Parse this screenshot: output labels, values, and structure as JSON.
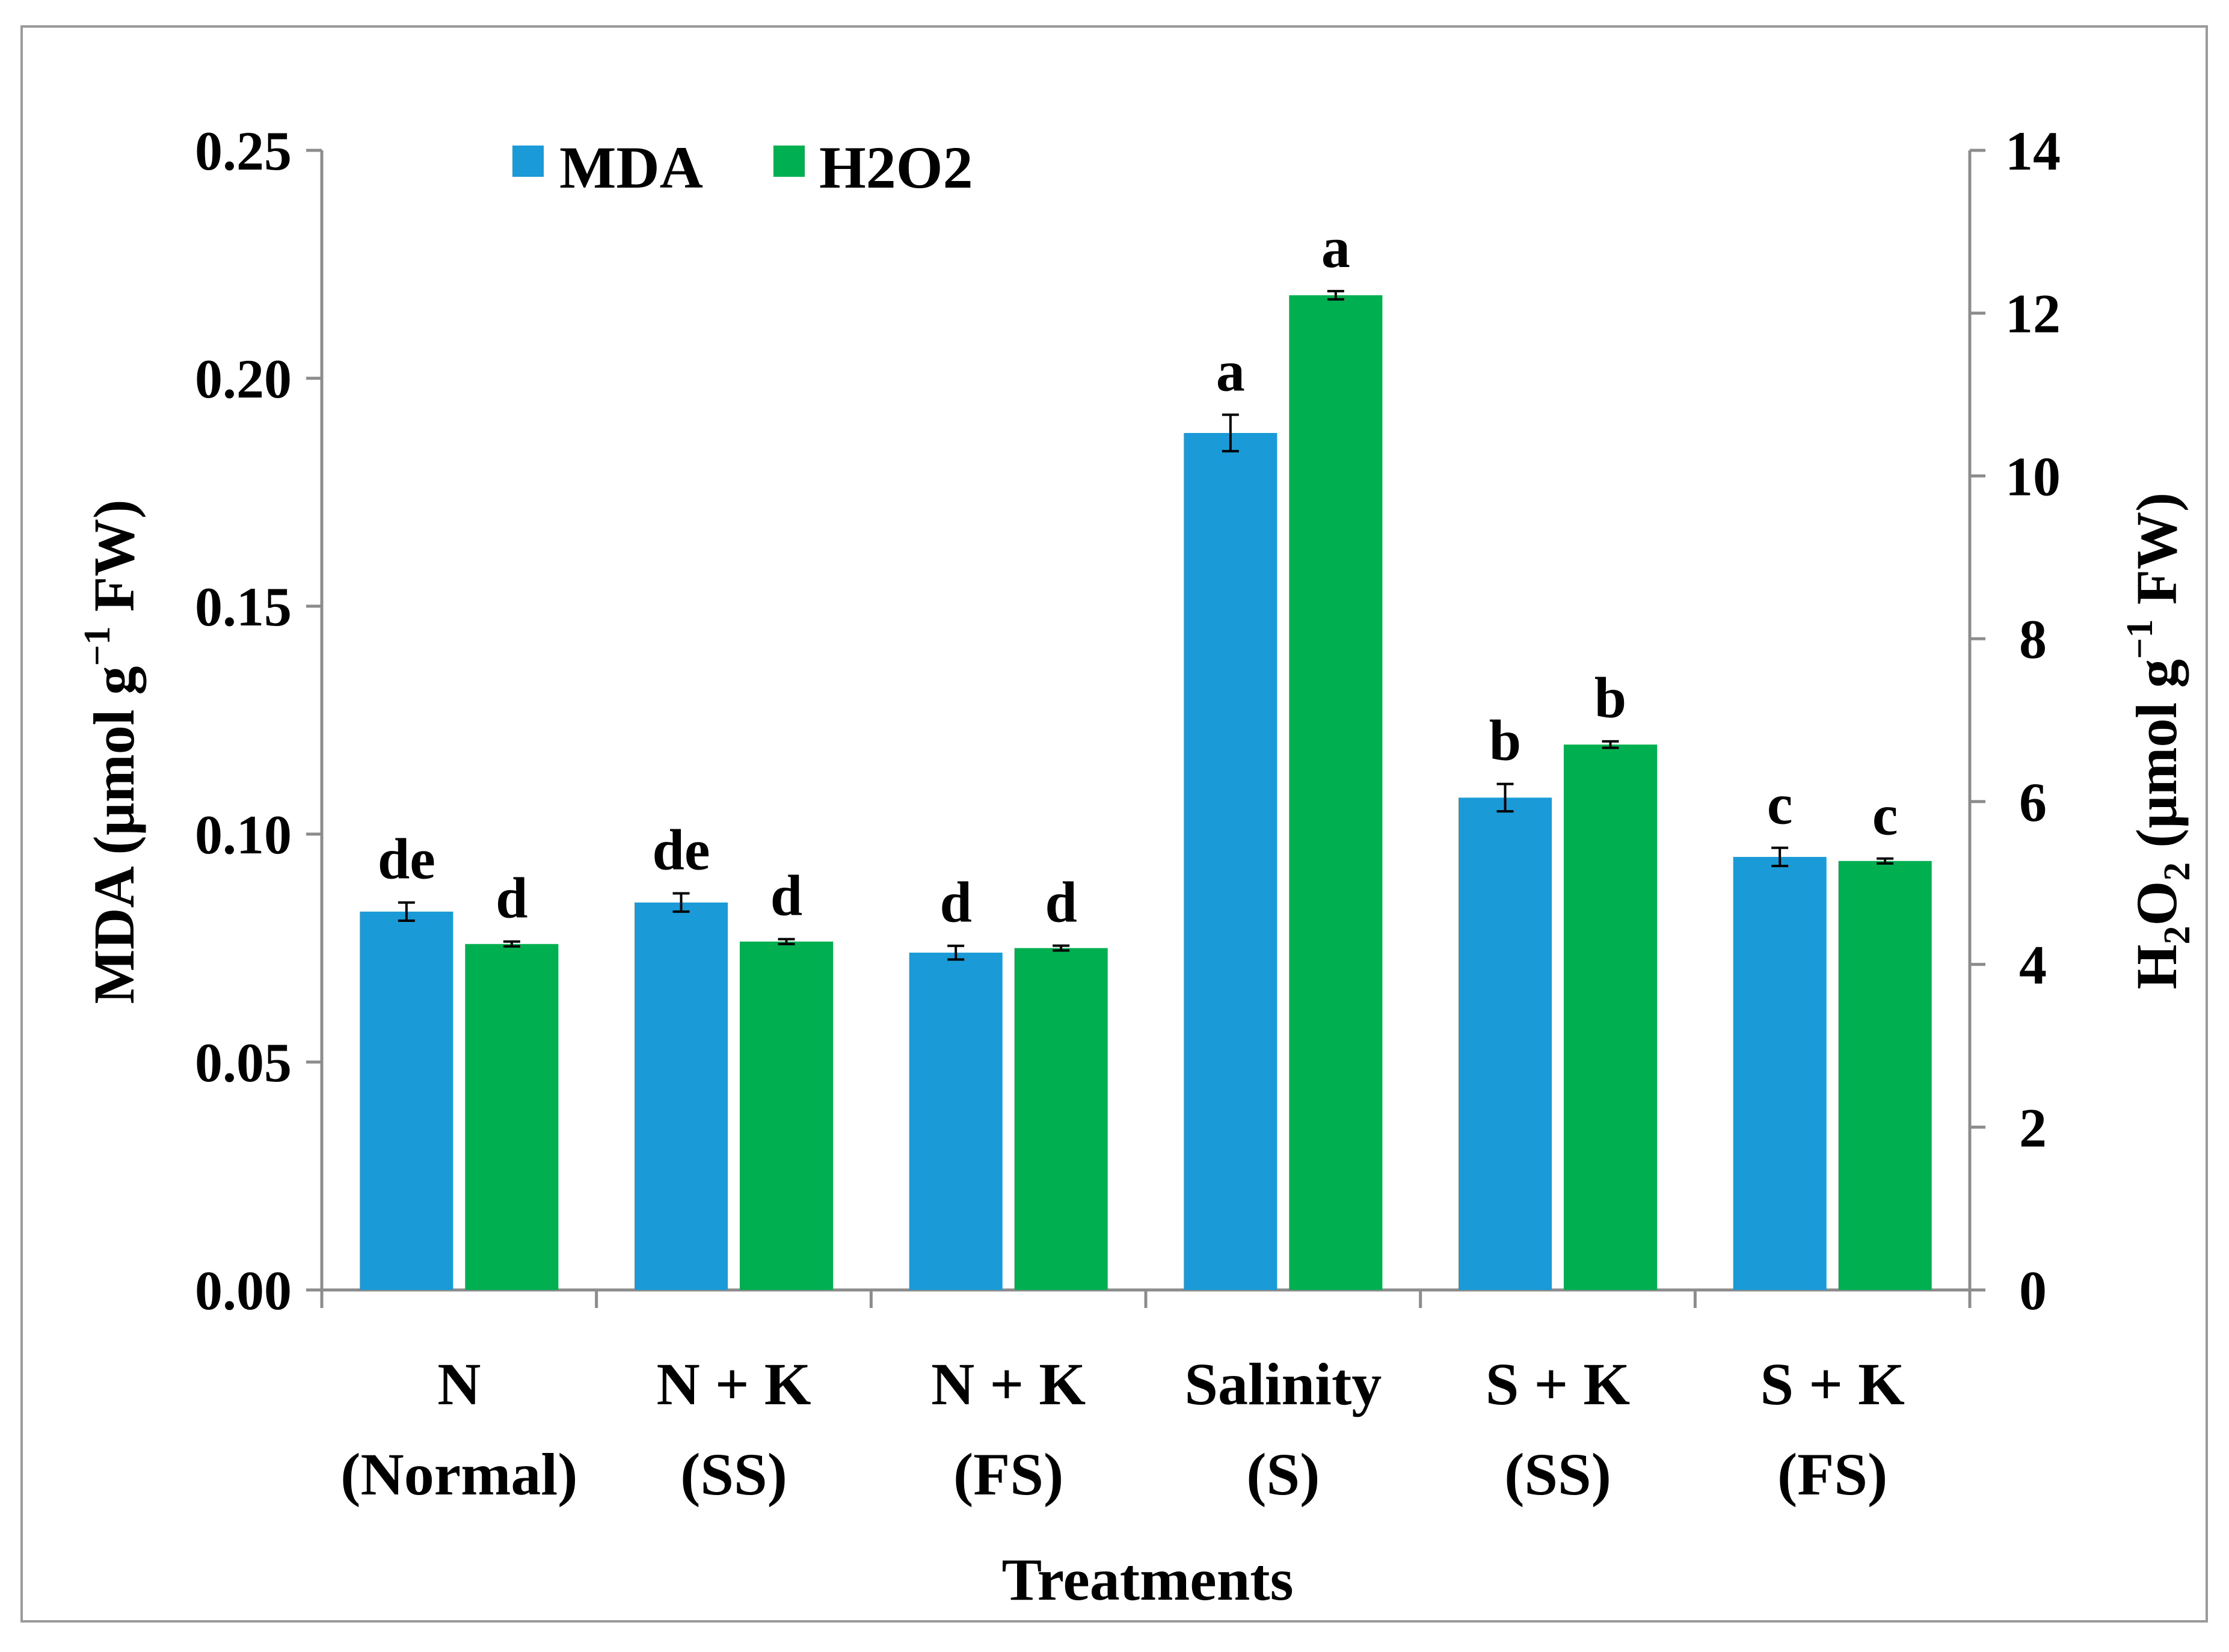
{
  "chart_data": {
    "type": "bar",
    "categories": [
      [
        "N",
        "(Normal)"
      ],
      [
        "N + K",
        "(SS)"
      ],
      [
        "N + K",
        "(FS)"
      ],
      [
        "Salinity",
        "(S)"
      ],
      [
        "S + K",
        "(SS)"
      ],
      [
        "S + K",
        "(FS)"
      ]
    ],
    "series": [
      {
        "name": "MDA",
        "axis": "left",
        "color": "#1a9ad7",
        "values": [
          0.083,
          0.085,
          0.074,
          0.188,
          0.108,
          0.095
        ],
        "errors": [
          0.002,
          0.002,
          0.0015,
          0.004,
          0.003,
          0.002
        ],
        "letters": [
          "de",
          "de",
          "d",
          "a",
          "b",
          "c"
        ]
      },
      {
        "name": "H2O2",
        "axis": "right",
        "color": "#00b050",
        "values": [
          4.25,
          4.28,
          4.2,
          12.22,
          6.7,
          5.27
        ],
        "errors": [
          0.03,
          0.03,
          0.03,
          0.05,
          0.04,
          0.03
        ],
        "letters": [
          "d",
          "d",
          "d",
          "a",
          "b",
          "c"
        ]
      }
    ],
    "left_axis": {
      "title_main": "MDA (µmol g",
      "title_sup": "−1",
      "title_end": " FW)",
      "ylim": [
        0,
        0.25
      ],
      "ticks": [
        "0.00",
        "0.05",
        "0.10",
        "0.15",
        "0.20",
        "0.25"
      ]
    },
    "right_axis": {
      "title_h": "H",
      "title_sub1": "2",
      "title_o": "O",
      "title_sub2": "2",
      "title_mid": " (µmol g",
      "title_sup": "−1",
      "title_end": " FW)",
      "ylim": [
        0,
        14
      ],
      "ticks": [
        "0",
        "2",
        "4",
        "6",
        "8",
        "10",
        "12",
        "14"
      ]
    },
    "xlabel": "Treatments",
    "legend": {
      "position": "top-left",
      "labels": [
        "MDA",
        "H2O2"
      ]
    },
    "grid": false
  }
}
